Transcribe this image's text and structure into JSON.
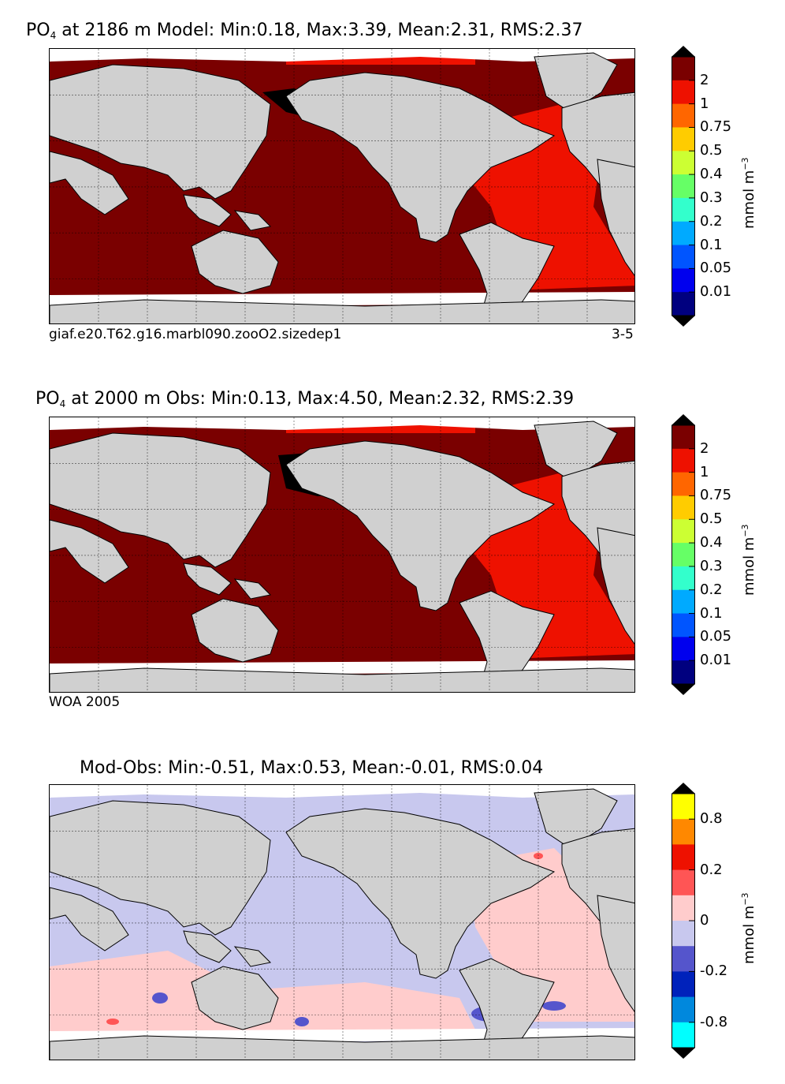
{
  "panels": [
    {
      "title_prefix": "PO",
      "title_sub": "4",
      "title_rest": "at 2186 m Model: Min:0.18, Max:3.39, Mean:2.31, RMS:2.37",
      "footer_left": "giaf.e20.T62.g16.marbl090.zooO2.sizedep1",
      "footer_right": "3-5"
    },
    {
      "title_prefix": "PO",
      "title_sub": "4",
      "title_rest": "at 2000 m Obs: Min:0.13, Max:4.50, Mean:2.32, RMS:2.39",
      "footer_left": "WOA 2005",
      "footer_right": ""
    },
    {
      "title_prefix": "",
      "title_sub": "",
      "title_rest": "Mod-Obs: Min:-0.51, Max:0.53, Mean:-0.01, RMS:0.04",
      "footer_left": "",
      "footer_right": ""
    }
  ],
  "colorbars": [
    {
      "unit_main": "mmol m",
      "unit_sup": "−3",
      "ticks": [
        "2",
        "1",
        "0.75",
        "0.5",
        "0.4",
        "0.3",
        "0.2",
        "0.1",
        "0.05",
        "0.01"
      ],
      "colors_top_to_bottom": [
        "#7a0000",
        "#ee1100",
        "#ff6600",
        "#ffcc00",
        "#ccff33",
        "#66ff66",
        "#33ffcc",
        "#00aaff",
        "#0055ff",
        "#0000ee",
        "#00007f"
      ],
      "over_color": "#000000",
      "under_color": "#000000"
    },
    {
      "unit_main": "mmol m",
      "unit_sup": "−3",
      "ticks": [
        "2",
        "1",
        "0.75",
        "0.5",
        "0.4",
        "0.3",
        "0.2",
        "0.1",
        "0.05",
        "0.01"
      ],
      "colors_top_to_bottom": [
        "#7a0000",
        "#ee1100",
        "#ff6600",
        "#ffcc00",
        "#ccff33",
        "#66ff66",
        "#33ffcc",
        "#00aaff",
        "#0055ff",
        "#0000ee",
        "#00007f"
      ],
      "over_color": "#000000",
      "under_color": "#000000"
    },
    {
      "unit_main": "mmol m",
      "unit_sup": "−3",
      "ticks": [
        "0.8",
        "0.2",
        "0",
        "-0.2",
        "-0.8"
      ],
      "colors_top_to_bottom": [
        "#ffff00",
        "#ff8800",
        "#ee1100",
        "#ff5555",
        "#ffcccc",
        "#c8c8ee",
        "#5555cc",
        "#0022bb",
        "#0088dd",
        "#00ffff"
      ],
      "over_color": "#000000",
      "under_color": "#000000"
    }
  ],
  "chart_data": [
    {
      "type": "heatmap",
      "title": "PO4 at 2186 m Model: Min:0.18, Max:3.39, Mean:2.31, RMS:2.37",
      "variable": "PO4",
      "depth": "2186 m",
      "source": "Model",
      "stats": {
        "min": 0.18,
        "max": 3.39,
        "mean": 2.31,
        "rms": 2.37
      },
      "contour_levels": [
        0.01,
        0.05,
        0.1,
        0.2,
        0.3,
        0.4,
        0.5,
        0.75,
        1,
        2
      ],
      "units": "mmol m^-3",
      "dominant_values": {
        "pacific_indian_southern": ">2",
        "atlantic": "1-2",
        "north_pacific_max": ">max level"
      }
    },
    {
      "type": "heatmap",
      "title": "PO4 at 2000 m Obs: Min:0.13, Max:4.50, Mean:2.32, RMS:2.39",
      "variable": "PO4",
      "depth": "2000 m",
      "source": "Obs",
      "stats": {
        "min": 0.13,
        "max": 4.5,
        "mean": 2.32,
        "rms": 2.39
      },
      "contour_levels": [
        0.01,
        0.05,
        0.1,
        0.2,
        0.3,
        0.4,
        0.5,
        0.75,
        1,
        2
      ],
      "units": "mmol m^-3",
      "dominant_values": {
        "pacific_indian_southern": ">2",
        "atlantic": "1-2",
        "north_pacific_max": ">max level"
      }
    },
    {
      "type": "heatmap",
      "title": "Mod-Obs: Min:-0.51, Max:0.53, Mean:-0.01, RMS:0.04",
      "variable": "PO4 difference",
      "stats": {
        "min": -0.51,
        "max": 0.53,
        "mean": -0.01,
        "rms": 0.04
      },
      "contour_levels": [
        -0.8,
        -0.4,
        -0.2,
        -0.1,
        0,
        0.1,
        0.2,
        0.4,
        0.8
      ],
      "units": "mmol m^-3"
    }
  ]
}
